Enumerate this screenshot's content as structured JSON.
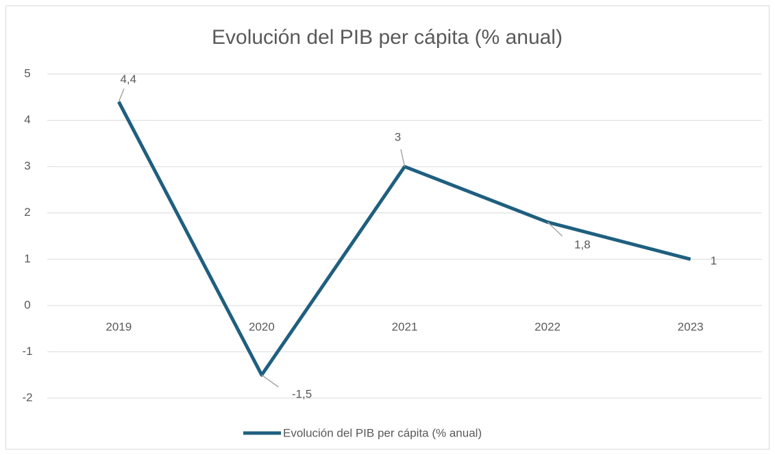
{
  "chart_data": {
    "type": "line",
    "title": "Evolución del PIB per cápita (% anual)",
    "categories": [
      "2019",
      "2020",
      "2021",
      "2022",
      "2023"
    ],
    "series": [
      {
        "name": "Evolución del PIB per cápita (% anual)",
        "color": "#1f5f7f",
        "values": [
          4.4,
          -1.5,
          3,
          1.8,
          1
        ],
        "value_labels": [
          "4,4",
          "-1,5",
          "3",
          "1,8",
          "1"
        ]
      }
    ],
    "ylim": [
      -2,
      5
    ],
    "yticks": [
      -2,
      -1,
      0,
      1,
      2,
      3,
      4,
      5
    ],
    "grid": true,
    "legend": "bottom"
  }
}
